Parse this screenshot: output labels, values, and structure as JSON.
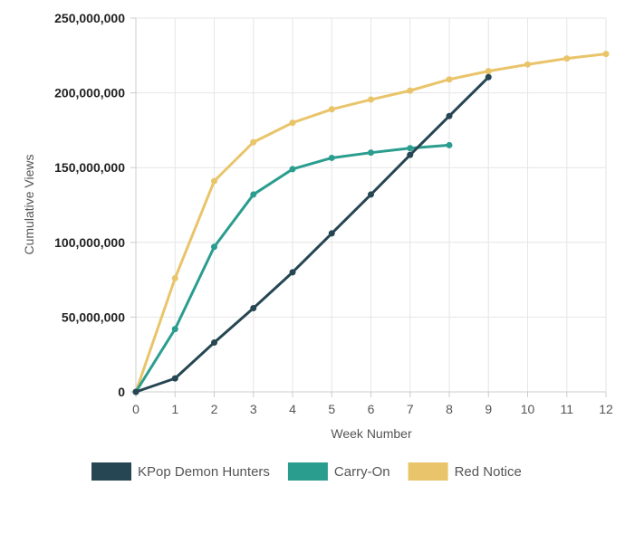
{
  "chart_data": {
    "type": "line",
    "title": "",
    "xlabel": "Week Number",
    "ylabel": "Cumulative Views",
    "x_ticks": [
      "0",
      "1",
      "2",
      "3",
      "4",
      "5",
      "6",
      "7",
      "8",
      "9",
      "10",
      "11",
      "12"
    ],
    "y_ticks": [
      "0",
      "50,000,000",
      "100,000,000",
      "150,000,000",
      "200,000,000",
      "250,000,000"
    ],
    "xlim": [
      0,
      12
    ],
    "ylim": [
      0,
      250000000
    ],
    "grid": true,
    "legend_position": "bottom",
    "series": [
      {
        "name": "KPop Demon Hunters",
        "color": "#264653",
        "x": [
          0,
          1,
          2,
          3,
          4,
          5,
          6,
          7,
          8,
          9
        ],
        "values": [
          0,
          9000000,
          33000000,
          56000000,
          80000000,
          106000000,
          132000000,
          158500000,
          184500000,
          210500000
        ]
      },
      {
        "name": "Carry-On",
        "color": "#2a9d8f",
        "x": [
          0,
          1,
          2,
          3,
          4,
          5,
          6,
          7,
          8
        ],
        "values": [
          0,
          42000000,
          97000000,
          132000000,
          149000000,
          156500000,
          160000000,
          163000000,
          165000000
        ]
      },
      {
        "name": "Red Notice",
        "color": "#e9c46a",
        "x": [
          0,
          1,
          2,
          3,
          4,
          5,
          6,
          7,
          8,
          9,
          10,
          11,
          12
        ],
        "values": [
          0,
          76000000,
          141000000,
          167000000,
          180000000,
          189000000,
          195500000,
          201500000,
          209000000,
          214500000,
          219000000,
          223000000,
          226000000
        ]
      }
    ]
  }
}
